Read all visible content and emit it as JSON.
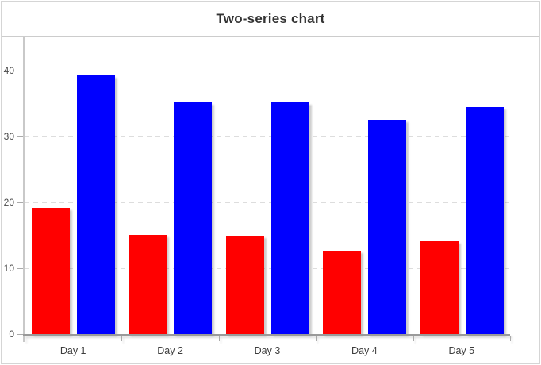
{
  "chart_data": {
    "type": "bar",
    "title": "Two-series chart",
    "categories": [
      "Day 1",
      "Day 2",
      "Day 3",
      "Day 4",
      "Day 5"
    ],
    "series": [
      {
        "name": "red",
        "color": "#ff0000",
        "values": [
          19.2,
          15.1,
          15.0,
          12.6,
          14.1
        ]
      },
      {
        "name": "blue",
        "color": "#0000ff",
        "values": [
          39.3,
          35.2,
          35.2,
          32.5,
          34.4
        ]
      }
    ],
    "yticks": [
      0,
      10,
      20,
      30,
      40
    ],
    "ylim": [
      0,
      45
    ],
    "xlabel": "",
    "ylabel": "",
    "grid": "horizontal-dashed",
    "legend": "none"
  },
  "colors": {
    "frame_border": "#d5d5d5",
    "title_text": "#333333",
    "title_divider": "#cccccc",
    "gridline": "#dddddd",
    "axis_line": "#9a9a9a",
    "tick_label": "#4a4a4a"
  }
}
